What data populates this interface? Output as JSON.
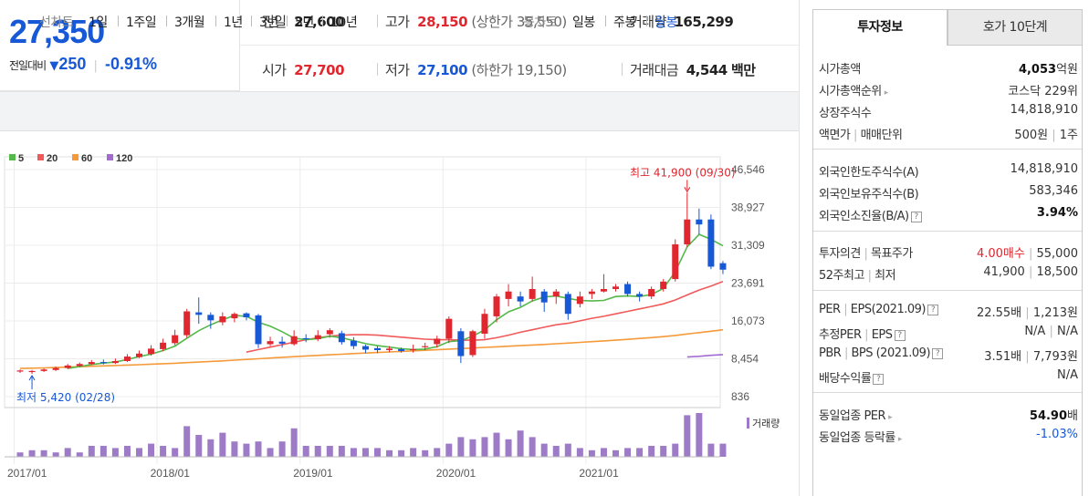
{
  "summary": {
    "current_price": "27,350",
    "change_label": "전일대비",
    "change_amount": "250",
    "change_pct": "-0.91%",
    "prev_close_label": "전일",
    "prev_close": "27,600",
    "high_label": "고가",
    "high": "28,150",
    "upper_limit_label": "(상한가",
    "upper_limit": "35,550)",
    "volume_label": "거래량",
    "volume": "165,299",
    "open_label": "시가",
    "open": "27,700",
    "low_label": "저가",
    "low": "27,100",
    "lower_limit_label": "(하한가",
    "lower_limit": "19,150)",
    "trade_value_label": "거래대금",
    "trade_value": "4,544",
    "trade_value_unit": "백만"
  },
  "period_bar": {
    "line_chart_label": "선차트",
    "periods": [
      "1일",
      "1주일",
      "3개월",
      "1년",
      "3년",
      "5년",
      "10년"
    ],
    "candle_label": "봉차트",
    "candle_periods": [
      "일봉",
      "주봉",
      "월봉"
    ],
    "active_candle": "월봉"
  },
  "colors": {
    "up": "#e0262e",
    "down": "#1758d6",
    "ma5": "#55b84a",
    "ma20": "#f05a5a",
    "ma60": "#f59a3a",
    "ma120": "#a26bd2",
    "volume": "#9e7bc6"
  },
  "chart_data": {
    "type": "candlestick",
    "legend": [
      "5",
      "20",
      "60",
      "120"
    ],
    "y_ticks": [
      "46,546",
      "38,927",
      "31,309",
      "23,691",
      "16,073",
      "8,454",
      "836"
    ],
    "y_tick_values": [
      46546,
      38927,
      31309,
      23691,
      16073,
      8454,
      836
    ],
    "x_ticks": [
      "2017/01",
      "2018/01",
      "2019/01",
      "2020/01",
      "2021/01"
    ],
    "x_tick_months": [
      0,
      12,
      24,
      36,
      48
    ],
    "ylim": [
      836,
      46546
    ],
    "volume_label": "거래량",
    "max_annotation": "최고 41,900 (09/30)",
    "max_point": {
      "month": 56,
      "value": 41900
    },
    "min_annotation": "최저 5,420 (02/28)",
    "min_point": {
      "month": 1,
      "value": 5420
    },
    "candles": [
      {
        "o": 5900,
        "c": 6100,
        "h": 6300,
        "l": 5600
      },
      {
        "o": 5800,
        "c": 6000,
        "h": 6200,
        "l": 5420
      },
      {
        "o": 6000,
        "c": 6300,
        "h": 6500,
        "l": 5800
      },
      {
        "o": 6200,
        "c": 6600,
        "h": 6900,
        "l": 6000
      },
      {
        "o": 6600,
        "c": 7100,
        "h": 7400,
        "l": 6400
      },
      {
        "o": 7000,
        "c": 7400,
        "h": 7700,
        "l": 6800
      },
      {
        "o": 7400,
        "c": 7800,
        "h": 8200,
        "l": 7200
      },
      {
        "o": 7800,
        "c": 7600,
        "h": 8300,
        "l": 7300
      },
      {
        "o": 7600,
        "c": 8000,
        "h": 8500,
        "l": 7400
      },
      {
        "o": 8000,
        "c": 8900,
        "h": 9400,
        "l": 7800
      },
      {
        "o": 8800,
        "c": 9500,
        "h": 10100,
        "l": 8600
      },
      {
        "o": 9400,
        "c": 10500,
        "h": 11200,
        "l": 9100
      },
      {
        "o": 10400,
        "c": 11700,
        "h": 12500,
        "l": 10000
      },
      {
        "o": 11600,
        "c": 13200,
        "h": 14300,
        "l": 11200
      },
      {
        "o": 13200,
        "c": 18000,
        "h": 18500,
        "l": 12700
      },
      {
        "o": 17800,
        "c": 17300,
        "h": 20800,
        "l": 15500
      },
      {
        "o": 17300,
        "c": 16200,
        "h": 17800,
        "l": 14500
      },
      {
        "o": 15800,
        "c": 17000,
        "h": 17800,
        "l": 15200
      },
      {
        "o": 16600,
        "c": 17500,
        "h": 17800,
        "l": 15800
      },
      {
        "o": 17600,
        "c": 16800,
        "h": 17800,
        "l": 16200
      },
      {
        "o": 17200,
        "c": 11400,
        "h": 17500,
        "l": 10600
      },
      {
        "o": 11400,
        "c": 12000,
        "h": 12900,
        "l": 11000
      },
      {
        "o": 11900,
        "c": 11500,
        "h": 12900,
        "l": 10700
      },
      {
        "o": 11400,
        "c": 13000,
        "h": 14200,
        "l": 11100
      },
      {
        "o": 12600,
        "c": 12400,
        "h": 13400,
        "l": 11800
      },
      {
        "o": 12400,
        "c": 13200,
        "h": 14200,
        "l": 12000
      },
      {
        "o": 13400,
        "c": 14200,
        "h": 14600,
        "l": 12700
      },
      {
        "o": 13600,
        "c": 11800,
        "h": 14100,
        "l": 11300
      },
      {
        "o": 12100,
        "c": 11000,
        "h": 12800,
        "l": 10400
      },
      {
        "o": 11000,
        "c": 10300,
        "h": 11300,
        "l": 9600
      },
      {
        "o": 10600,
        "c": 10200,
        "h": 11000,
        "l": 9600
      },
      {
        "o": 10200,
        "c": 10500,
        "h": 11000,
        "l": 9800
      },
      {
        "o": 10400,
        "c": 10000,
        "h": 10700,
        "l": 9700
      },
      {
        "o": 10200,
        "c": 10400,
        "h": 11300,
        "l": 9700
      },
      {
        "o": 10800,
        "c": 11000,
        "h": 11700,
        "l": 10200
      },
      {
        "o": 11400,
        "c": 12500,
        "h": 13100,
        "l": 10700
      },
      {
        "o": 12500,
        "c": 16500,
        "h": 17000,
        "l": 11600
      },
      {
        "o": 14000,
        "c": 9000,
        "h": 14600,
        "l": 7600
      },
      {
        "o": 9200,
        "c": 14000,
        "h": 14300,
        "l": 8800
      },
      {
        "o": 13500,
        "c": 17500,
        "h": 18500,
        "l": 12500
      },
      {
        "o": 17000,
        "c": 21000,
        "h": 21500,
        "l": 15800
      },
      {
        "o": 20500,
        "c": 22000,
        "h": 23500,
        "l": 19000
      },
      {
        "o": 21000,
        "c": 20000,
        "h": 22000,
        "l": 19000
      },
      {
        "o": 20500,
        "c": 22500,
        "h": 25000,
        "l": 20000
      },
      {
        "o": 22000,
        "c": 19800,
        "h": 22500,
        "l": 17900
      },
      {
        "o": 21000,
        "c": 22000,
        "h": 22500,
        "l": 19500
      },
      {
        "o": 21500,
        "c": 17500,
        "h": 22000,
        "l": 16300
      },
      {
        "o": 19500,
        "c": 21000,
        "h": 22000,
        "l": 18800
      },
      {
        "o": 21500,
        "c": 22000,
        "h": 22500,
        "l": 20500
      },
      {
        "o": 22000,
        "c": 22500,
        "h": 25500,
        "l": 21800
      },
      {
        "o": 22500,
        "c": 23000,
        "h": 23500,
        "l": 22000
      },
      {
        "o": 23500,
        "c": 21500,
        "h": 24000,
        "l": 21000
      },
      {
        "o": 21500,
        "c": 21000,
        "h": 22000,
        "l": 20000
      },
      {
        "o": 21000,
        "c": 22500,
        "h": 23000,
        "l": 20500
      },
      {
        "o": 22500,
        "c": 24000,
        "h": 24500,
        "l": 22000
      },
      {
        "o": 24500,
        "c": 31500,
        "h": 32500,
        "l": 24000
      },
      {
        "o": 31500,
        "c": 36500,
        "h": 41900,
        "l": 31000
      },
      {
        "o": 36500,
        "c": 35500,
        "h": 38700,
        "l": 33500
      },
      {
        "o": 36500,
        "c": 27000,
        "h": 37500,
        "l": 26500
      },
      {
        "o": 27700,
        "c": 26400,
        "h": 28150,
        "l": 25500
      }
    ],
    "ma5": [
      null,
      null,
      null,
      null,
      6500,
      6900,
      7300,
      7600,
      7800,
      8300,
      8900,
      9400,
      10100,
      11000,
      12600,
      14100,
      15300,
      16300,
      17200,
      17000,
      15800,
      15000,
      13900,
      12600,
      12300,
      12500,
      13000,
      12700,
      12100,
      11500,
      11100,
      10800,
      10500,
      10300,
      10400,
      10900,
      11900,
      12100,
      13000,
      14300,
      16300,
      17900,
      18800,
      20100,
      20900,
      21100,
      20600,
      20200,
      20100,
      20200,
      21000,
      21100,
      21000,
      21400,
      22600,
      26000,
      31000,
      33500,
      32500,
      31200
    ],
    "ma20": [
      null,
      null,
      null,
      null,
      null,
      null,
      null,
      null,
      null,
      null,
      null,
      null,
      null,
      null,
      null,
      null,
      null,
      null,
      null,
      9800,
      10300,
      10800,
      11300,
      11800,
      12300,
      12700,
      13000,
      13200,
      13300,
      13300,
      13200,
      13000,
      12800,
      12600,
      12400,
      12300,
      12300,
      12200,
      12200,
      12300,
      12700,
      13200,
      13800,
      14300,
      14800,
      15300,
      15600,
      16100,
      16600,
      17000,
      17500,
      18000,
      18500,
      19000,
      19500,
      20300,
      21300,
      22300,
      23100,
      24000
    ],
    "ma60": [
      6500,
      6560,
      6620,
      6700,
      6780,
      6860,
      6940,
      7020,
      7100,
      7180,
      7270,
      7370,
      7460,
      7560,
      7680,
      7800,
      7930,
      8040,
      8180,
      8320,
      8460,
      8600,
      8740,
      8880,
      9020,
      9140,
      9260,
      9380,
      9500,
      9610,
      9720,
      9830,
      9940,
      10050,
      10160,
      10280,
      10400,
      10510,
      10620,
      10740,
      10860,
      10980,
      11100,
      11220,
      11340,
      11480,
      11610,
      11750,
      11900,
      12050,
      12200,
      12360,
      12540,
      12720,
      12920,
      13160,
      13440,
      13730,
      14000,
      14300
    ],
    "ma120": [
      null,
      null,
      null,
      null,
      null,
      null,
      null,
      null,
      null,
      null,
      null,
      null,
      null,
      null,
      null,
      null,
      null,
      null,
      null,
      null,
      null,
      null,
      null,
      null,
      null,
      null,
      null,
      null,
      null,
      null,
      null,
      null,
      null,
      null,
      null,
      null,
      null,
      null,
      null,
      null,
      null,
      null,
      null,
      null,
      null,
      null,
      null,
      null,
      null,
      null,
      null,
      null,
      null,
      null,
      null,
      null,
      8800,
      8950,
      9150,
      9300
    ],
    "volume": [
      2,
      3,
      3,
      2,
      4,
      2,
      5,
      5,
      4,
      5,
      4,
      6,
      5,
      4,
      14,
      10,
      8,
      11,
      7,
      6,
      7,
      4,
      7,
      13,
      5,
      5,
      5,
      5,
      4,
      4,
      4,
      3,
      3,
      4,
      3,
      4,
      6,
      9,
      8,
      9,
      11,
      8,
      12,
      9,
      6,
      5,
      6,
      4,
      3,
      4,
      3,
      4,
      4,
      5,
      5,
      6,
      19,
      20,
      6,
      6
    ]
  },
  "right_panel": {
    "tab_active": "투자정보",
    "tab_other": "호가 10단계",
    "market_cap_label": "시가총액",
    "market_cap": "4,053",
    "market_cap_unit": "억원",
    "market_cap_rank_label": "시가총액순위",
    "market_cap_rank": "코스닥 229위",
    "listed_shares_label": "상장주식수",
    "listed_shares": "14,818,910",
    "par_value_label": "액면가",
    "trading_unit_label": "매매단위",
    "par_value": "500원",
    "trading_unit": "1주",
    "foreign_limit_label": "외국인한도주식수(A)",
    "foreign_limit": "14,818,910",
    "foreign_hold_label": "외국인보유주식수(B)",
    "foreign_hold": "583,346",
    "foreign_ratio_label": "외국인소진율(B/A)",
    "foreign_ratio": "3.94%",
    "opinion_label": "투자의견",
    "target_label": "목표주가",
    "opinion": "4.00매수",
    "target": "55,000",
    "w52_high_label": "52주최고",
    "w52_low_label": "최저",
    "w52_high": "41,900",
    "w52_low": "18,500",
    "per_label": "PER",
    "eps_label": "EPS(2021.09)",
    "per": "22.55배",
    "eps": "1,213원",
    "est_per_label": "추정PER",
    "est_eps_label": "EPS",
    "est_per": "N/A",
    "est_eps": "N/A",
    "pbr_label": "PBR",
    "bps_label": "BPS (2021.09)",
    "pbr": "3.51배",
    "bps": "7,793원",
    "dividend_label": "배당수익률",
    "dividend": "N/A",
    "industry_per_label": "동일업종 PER",
    "industry_per": "54.90",
    "industry_per_unit": "배",
    "industry_chg_label": "동일업종 등락률",
    "industry_chg": "-1.03%"
  }
}
